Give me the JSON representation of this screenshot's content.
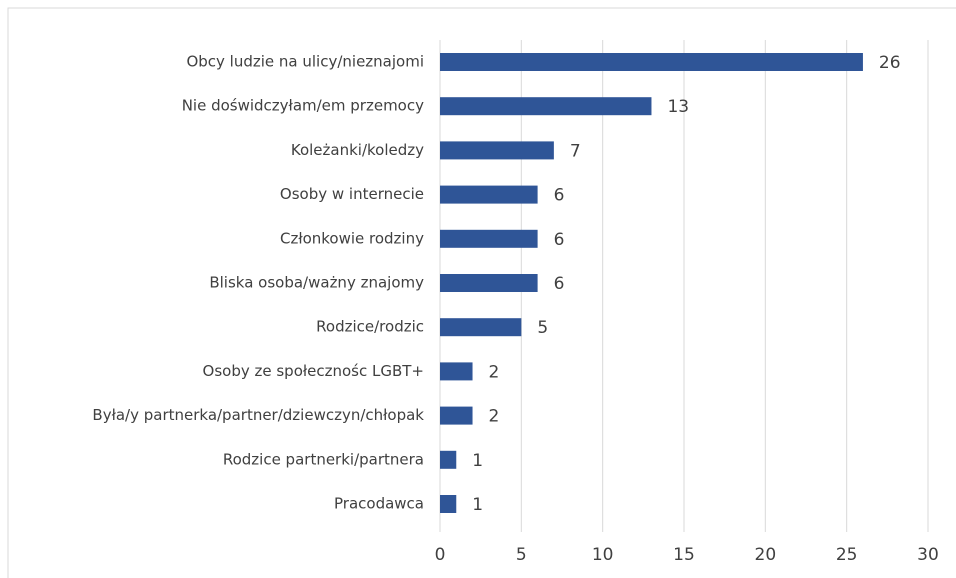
{
  "chart_data": {
    "type": "hbar",
    "categories": [
      "Obcy ludzie na ulicy/nieznajomi",
      "Nie doświdczyłam/em przemocy",
      "Koleżanki/koledzy",
      "Osoby w internecie",
      "Członkowie rodziny",
      "Bliska osoba/ważny znajomy",
      "Rodzice/rodzic",
      "Osoby ze społecznośc LGBT+",
      "Była/y  partnerka/partner/dziewczyn/chłopak",
      "Rodzice partnerki/partnera",
      "Pracodawca"
    ],
    "values": [
      26,
      13,
      7,
      6,
      6,
      6,
      5,
      2,
      2,
      1,
      1
    ],
    "color": "#2f5597",
    "xlim": [
      0,
      30
    ],
    "xticks": [
      0,
      5,
      10,
      15,
      20,
      25,
      30
    ],
    "grid": true
  }
}
